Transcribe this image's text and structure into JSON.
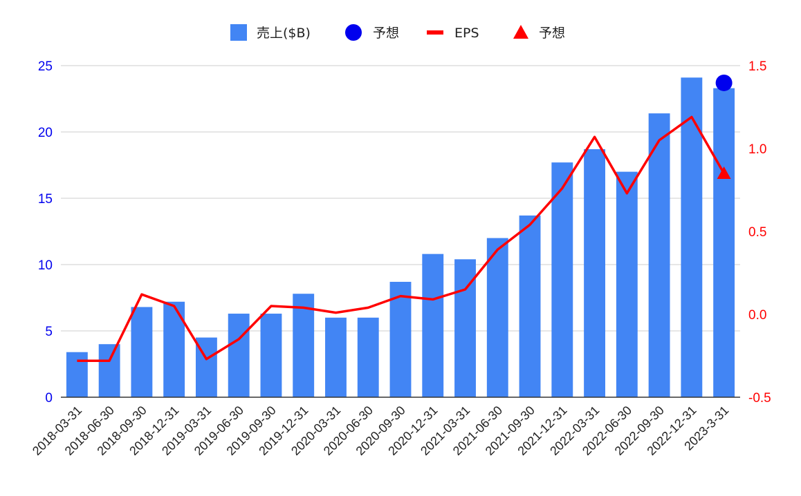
{
  "chart_data": {
    "type": "bar",
    "categories": [
      "2018-03-31",
      "2018-06-30",
      "2018-09-30",
      "2018-12-31",
      "2019-03-31",
      "2019-06-30",
      "2019-09-30",
      "2019-12-31",
      "2020-03-31",
      "2020-06-30",
      "2020-09-30",
      "2020-12-31",
      "2021-03-31",
      "2021-06-30",
      "2021-09-30",
      "2021-12-31",
      "2022-03-31",
      "2022-06-30",
      "2022-09-30",
      "2022-12-31",
      "2023-3-31"
    ],
    "series": [
      {
        "name": "売上($B)",
        "type": "bar",
        "axis": "left",
        "color": "#4285f4",
        "values": [
          3.4,
          4.0,
          6.8,
          7.2,
          4.5,
          6.3,
          6.3,
          7.8,
          6.0,
          6.0,
          8.7,
          10.8,
          10.4,
          12.0,
          13.7,
          17.7,
          18.7,
          17.0,
          21.4,
          24.1,
          23.3
        ]
      },
      {
        "name": "予想",
        "type": "scatter",
        "axis": "left",
        "color": "#0000ee",
        "marker": "circle",
        "points": [
          {
            "category": "2023-3-31",
            "value": 23.7
          }
        ]
      },
      {
        "name": "EPS",
        "type": "line",
        "axis": "right",
        "color": "#ff0000",
        "values": [
          -0.28,
          -0.28,
          0.12,
          0.05,
          -0.27,
          -0.15,
          0.05,
          0.04,
          0.01,
          0.04,
          0.11,
          0.09,
          0.15,
          0.39,
          0.54,
          0.76,
          1.07,
          0.73,
          1.05,
          1.19,
          0.85
        ]
      },
      {
        "name": "予想",
        "type": "scatter",
        "axis": "right",
        "color": "#ff0000",
        "marker": "triangle",
        "points": [
          {
            "category": "2023-3-31",
            "value": 0.85
          }
        ]
      }
    ],
    "y_left": {
      "ylim": [
        0,
        25
      ],
      "ticks": [
        "0",
        "5",
        "10",
        "15",
        "20",
        "25"
      ],
      "color": "#0000ee"
    },
    "y_right": {
      "ylim": [
        -0.5,
        1.5
      ],
      "ticks": [
        "-0.5",
        "0.0",
        "0.5",
        "1.0",
        "1.5"
      ],
      "color": "#ff0000"
    },
    "grid": true,
    "legend_position": "top-center",
    "title": "",
    "xlabel": "",
    "ylabel": ""
  }
}
